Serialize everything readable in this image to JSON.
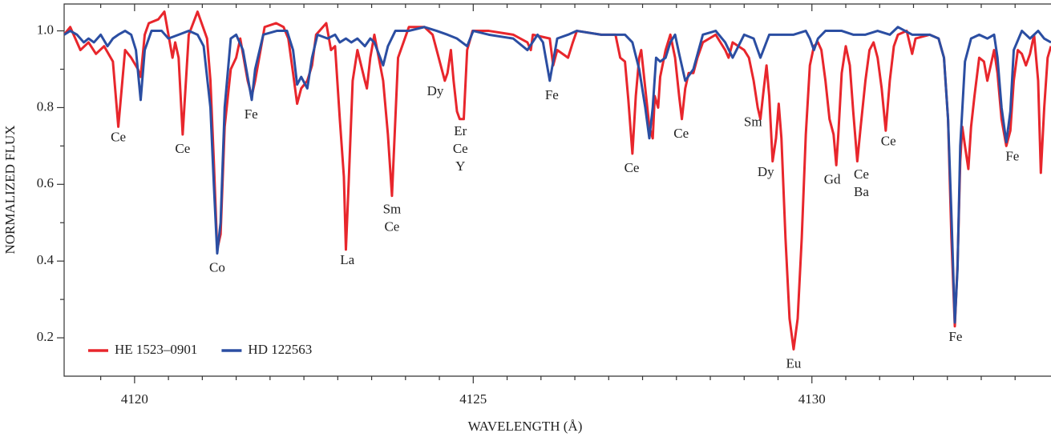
{
  "chart_data": {
    "type": "line",
    "x_label": "WAVELENGTH (Å)",
    "y_label": "NORMALIZED FLUX",
    "xlim": [
      4118.96,
      4133.53
    ],
    "ylim": [
      0.1,
      1.07
    ],
    "xticks": [
      4120,
      4125,
      4130
    ],
    "xminorticks": [
      4119.5,
      4120.5,
      4121,
      4121.5,
      4122,
      4122.5,
      4123,
      4123.5,
      4124,
      4124.5,
      4125.5,
      4126,
      4126.5,
      4127,
      4127.5,
      4128,
      4128.5,
      4129,
      4129.5,
      4130.5,
      4131,
      4131.5,
      4132,
      4132.5,
      4133
    ],
    "yticks": [
      0.2,
      0.4,
      0.6,
      0.8,
      {
        "value": 1,
        "label": "1.0"
      }
    ],
    "yminorticks": [
      0.3,
      0.5,
      0.7,
      0.9
    ],
    "legend": "lower left",
    "series": [
      {
        "name": "HE 1523–0901",
        "color": "#e8262c",
        "x": [
          4118.96,
          4119.05,
          4119.2,
          4119.32,
          4119.43,
          4119.55,
          4119.68,
          4119.76,
          4119.86,
          4119.95,
          4120.05,
          4120.09,
          4120.15,
          4120.21,
          4120.35,
          4120.44,
          4120.56,
          4120.6,
          4120.65,
          4120.71,
          4120.8,
          4120.93,
          4121.07,
          4121.12,
          4121.17,
          4121.22,
          4121.27,
          4121.33,
          4121.42,
          4121.5,
          4121.56,
          4121.67,
          4121.73,
          4121.78,
          4121.92,
          4122.09,
          4122.2,
          4122.27,
          4122.34,
          4122.4,
          4122.46,
          4122.55,
          4122.62,
          4122.68,
          4122.83,
          4122.9,
          4122.96,
          4123.03,
          4123.09,
          4123.12,
          4123.16,
          4123.22,
          4123.29,
          4123.4,
          4123.43,
          4123.48,
          4123.54,
          4123.67,
          4123.74,
          4123.8,
          4123.85,
          4123.89,
          4124.05,
          4124.28,
          4124.4,
          4124.46,
          4124.52,
          4124.58,
          4124.62,
          4124.67,
          4124.71,
          4124.76,
          4124.8,
          4124.86,
          4124.91,
          4124.99,
          4125.23,
          4125.59,
          4125.8,
          4125.85,
          4125.88,
          4126.13,
          4126.18,
          4126.24,
          4126.4,
          4126.47,
          4126.53,
          4126.89,
          4127.1,
          4127.17,
          4127.24,
          4127.29,
          4127.35,
          4127.4,
          4127.45,
          4127.48,
          4127.54,
          4127.6,
          4127.65,
          4127.68,
          4127.73,
          4127.76,
          4127.84,
          4127.91,
          4127.98,
          4128.04,
          4128.08,
          4128.13,
          4128.18,
          4128.25,
          4128.31,
          4128.39,
          4128.58,
          4128.72,
          4128.77,
          4128.83,
          4129,
          4129.07,
          4129.14,
          4129.2,
          4129.24,
          4129.29,
          4129.33,
          4129.37,
          4129.42,
          4129.47,
          4129.51,
          4129.55,
          4129.61,
          4129.67,
          4129.73,
          4129.79,
          4129.85,
          4129.91,
          4129.97,
          4130.03,
          4130.09,
          4130.14,
          4130.2,
          4130.26,
          4130.32,
          4130.36,
          4130.39,
          4130.44,
          4130.5,
          4130.56,
          4130.61,
          4130.67,
          4130.72,
          4130.79,
          4130.85,
          4130.91,
          4130.97,
          4131.03,
          4131.09,
          4131.15,
          4131.21,
          4131.27,
          4131.4,
          4131.48,
          4131.53,
          4131.74,
          4131.87,
          4131.95,
          4132.01,
          4132.06,
          4132.11,
          4132.15,
          4132.19,
          4132.22,
          4132.26,
          4132.31,
          4132.35,
          4132.4,
          4132.47,
          4132.54,
          4132.59,
          4132.69,
          4132.74,
          4132.8,
          4132.87,
          4132.93,
          4132.98,
          4133.04,
          4133.1,
          4133.16,
          4133.22,
          4133.28,
          4133.34,
          4133.38,
          4133.43,
          4133.48,
          4133.53
        ],
        "values": [
          0.99,
          1.01,
          0.95,
          0.97,
          0.94,
          0.96,
          0.92,
          0.75,
          0.95,
          0.93,
          0.9,
          0.88,
          0.99,
          1.02,
          1.03,
          1.05,
          0.93,
          0.97,
          0.93,
          0.73,
          0.99,
          1.05,
          0.98,
          0.87,
          0.66,
          0.43,
          0.47,
          0.75,
          0.9,
          0.93,
          0.98,
          0.87,
          0.83,
          0.87,
          1.01,
          1.02,
          1.01,
          0.98,
          0.89,
          0.81,
          0.85,
          0.87,
          0.91,
          0.99,
          1.02,
          0.95,
          0.96,
          0.77,
          0.62,
          0.43,
          0.6,
          0.87,
          0.95,
          0.87,
          0.85,
          0.93,
          0.99,
          0.87,
          0.73,
          0.57,
          0.77,
          0.93,
          1.01,
          1.01,
          0.99,
          0.95,
          0.91,
          0.87,
          0.89,
          0.95,
          0.87,
          0.79,
          0.77,
          0.77,
          0.95,
          1,
          1,
          0.99,
          0.97,
          0.95,
          0.99,
          0.98,
          0.91,
          0.95,
          0.93,
          0.97,
          1,
          0.99,
          0.99,
          0.93,
          0.92,
          0.82,
          0.68,
          0.83,
          0.93,
          0.95,
          0.85,
          0.75,
          0.72,
          0.83,
          0.8,
          0.88,
          0.95,
          0.99,
          0.93,
          0.83,
          0.77,
          0.85,
          0.89,
          0.89,
          0.93,
          0.97,
          0.99,
          0.95,
          0.93,
          0.97,
          0.95,
          0.93,
          0.87,
          0.8,
          0.77,
          0.85,
          0.91,
          0.83,
          0.66,
          0.72,
          0.81,
          0.72,
          0.46,
          0.25,
          0.17,
          0.25,
          0.46,
          0.73,
          0.91,
          0.96,
          0.97,
          0.95,
          0.87,
          0.77,
          0.73,
          0.65,
          0.73,
          0.89,
          0.96,
          0.91,
          0.79,
          0.66,
          0.75,
          0.87,
          0.95,
          0.97,
          0.93,
          0.85,
          0.74,
          0.87,
          0.96,
          0.99,
          1,
          0.94,
          0.98,
          0.99,
          0.98,
          0.93,
          0.77,
          0.46,
          0.23,
          0.39,
          0.66,
          0.75,
          0.7,
          0.64,
          0.75,
          0.83,
          0.93,
          0.92,
          0.87,
          0.95,
          0.89,
          0.77,
          0.7,
          0.74,
          0.87,
          0.95,
          0.94,
          0.91,
          0.94,
          0.99,
          0.87,
          0.63,
          0.8,
          0.93,
          0.96
        ]
      },
      {
        "name": "HD 122563",
        "color": "#2b4ea2",
        "x": [
          4118.96,
          4119.05,
          4119.15,
          4119.25,
          4119.32,
          4119.4,
          4119.5,
          4119.6,
          4119.68,
          4119.76,
          4119.86,
          4119.95,
          4120.02,
          4120.09,
          4120.15,
          4120.25,
          4120.4,
          4120.5,
          4120.65,
          4120.8,
          4120.93,
          4121.02,
          4121.12,
          4121.17,
          4121.22,
          4121.27,
          4121.33,
          4121.42,
          4121.5,
          4121.6,
          4121.67,
          4121.73,
          4121.78,
          4121.9,
          4122.1,
          4122.25,
          4122.34,
          4122.4,
          4122.46,
          4122.55,
          4122.62,
          4122.7,
          4122.85,
          4122.96,
          4123.03,
          4123.12,
          4123.2,
          4123.29,
          4123.4,
          4123.48,
          4123.54,
          4123.67,
          4123.74,
          4123.85,
          4124.05,
          4124.28,
          4124.46,
          4124.62,
          4124.76,
          4124.91,
          4125,
          4125.23,
          4125.59,
          4125.8,
          4125.95,
          4126.03,
          4126.13,
          4126.24,
          4126.4,
          4126.53,
          4126.89,
          4127.1,
          4127.24,
          4127.35,
          4127.45,
          4127.54,
          4127.6,
          4127.65,
          4127.7,
          4127.76,
          4127.84,
          4127.91,
          4127.98,
          4128.04,
          4128.13,
          4128.25,
          4128.39,
          4128.58,
          4128.72,
          4128.83,
          4129,
          4129.14,
          4129.24,
          4129.37,
          4129.55,
          4129.73,
          4129.91,
          4129.97,
          4130.03,
          4130.09,
          4130.2,
          4130.44,
          4130.61,
          4130.79,
          4130.97,
          4131.15,
          4131.27,
          4131.48,
          4131.74,
          4131.87,
          4131.95,
          4132.01,
          4132.06,
          4132.11,
          4132.15,
          4132.19,
          4132.26,
          4132.35,
          4132.47,
          4132.59,
          4132.69,
          4132.74,
          4132.8,
          4132.87,
          4132.93,
          4132.98,
          4133.1,
          4133.22,
          4133.34,
          4133.43,
          4133.53
        ],
        "values": [
          0.99,
          1,
          0.99,
          0.97,
          0.98,
          0.97,
          0.99,
          0.96,
          0.98,
          0.99,
          1,
          0.99,
          0.95,
          0.82,
          0.95,
          1,
          1,
          0.98,
          0.99,
          1,
          0.99,
          0.96,
          0.8,
          0.6,
          0.42,
          0.5,
          0.8,
          0.98,
          0.99,
          0.95,
          0.88,
          0.82,
          0.9,
          0.99,
          1,
          1,
          0.95,
          0.86,
          0.88,
          0.85,
          0.93,
          0.99,
          0.98,
          0.99,
          0.97,
          0.98,
          0.97,
          0.98,
          0.96,
          0.98,
          0.97,
          0.91,
          0.96,
          1,
          1,
          1.01,
          1,
          0.99,
          0.98,
          0.96,
          1,
          0.99,
          0.98,
          0.95,
          0.99,
          0.97,
          0.87,
          0.98,
          0.99,
          1,
          0.99,
          0.99,
          0.99,
          0.97,
          0.9,
          0.8,
          0.72,
          0.8,
          0.93,
          0.92,
          0.93,
          0.97,
          0.99,
          0.94,
          0.87,
          0.9,
          0.99,
          1,
          0.97,
          0.93,
          0.99,
          0.98,
          0.93,
          0.99,
          0.99,
          0.99,
          1,
          0.98,
          0.95,
          0.98,
          1,
          1,
          0.99,
          0.99,
          1,
          0.99,
          1.01,
          0.99,
          0.99,
          0.98,
          0.93,
          0.77,
          0.52,
          0.24,
          0.38,
          0.7,
          0.92,
          0.98,
          0.99,
          0.98,
          0.99,
          0.93,
          0.8,
          0.71,
          0.79,
          0.95,
          1,
          0.98,
          1,
          0.98,
          0.97
        ]
      }
    ],
    "annotations": [
      {
        "lines": [
          "Ce"
        ],
        "x": 4119.76,
        "y": 0.72
      },
      {
        "lines": [
          "Ce"
        ],
        "x": 4120.71,
        "y": 0.69
      },
      {
        "lines": [
          "Co"
        ],
        "x": 4121.22,
        "y": 0.38
      },
      {
        "lines": [
          "Fe"
        ],
        "x": 4121.72,
        "y": 0.78
      },
      {
        "lines": [
          "La"
        ],
        "x": 4123.14,
        "y": 0.4
      },
      {
        "lines": [
          "Sm",
          "Ce"
        ],
        "x": 4123.8,
        "y": 0.51
      },
      {
        "lines": [
          "Dy"
        ],
        "x": 4124.44,
        "y": 0.84
      },
      {
        "lines": [
          "Er",
          "Ce",
          "Y"
        ],
        "x": 4124.81,
        "y": 0.69
      },
      {
        "lines": [
          "Fe"
        ],
        "x": 4126.16,
        "y": 0.83
      },
      {
        "lines": [
          "Ce"
        ],
        "x": 4127.34,
        "y": 0.64
      },
      {
        "lines": [
          "Ce"
        ],
        "x": 4128.07,
        "y": 0.73
      },
      {
        "lines": [
          "Sm"
        ],
        "x": 4129.13,
        "y": 0.76
      },
      {
        "lines": [
          "Dy"
        ],
        "x": 4129.32,
        "y": 0.63
      },
      {
        "lines": [
          "Eu"
        ],
        "x": 4129.73,
        "y": 0.13
      },
      {
        "lines": [
          "Gd"
        ],
        "x": 4130.3,
        "y": 0.61
      },
      {
        "lines": [
          "Ce",
          "Ba"
        ],
        "x": 4130.73,
        "y": 0.6
      },
      {
        "lines": [
          "Ce"
        ],
        "x": 4131.13,
        "y": 0.71
      },
      {
        "lines": [
          "Fe"
        ],
        "x": 4132.12,
        "y": 0.2
      },
      {
        "lines": [
          "Fe"
        ],
        "x": 4132.96,
        "y": 0.67
      }
    ]
  }
}
